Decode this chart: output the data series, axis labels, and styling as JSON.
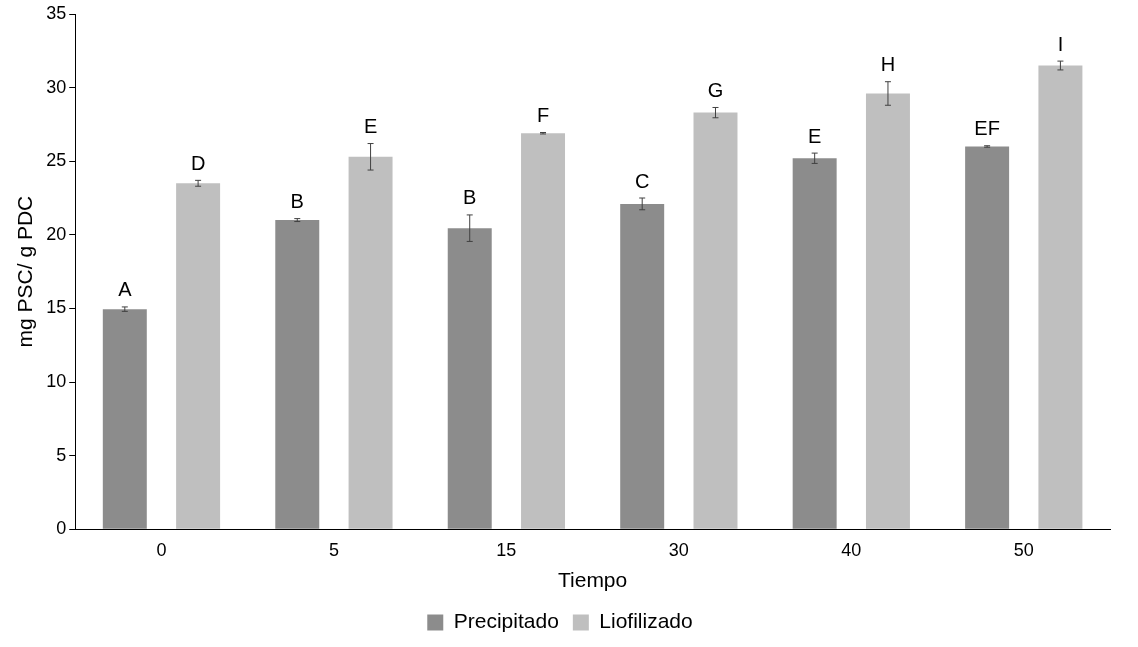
{
  "chart_data": {
    "type": "bar",
    "xlabel": "Tiempo",
    "ylabel": "mg PSC/ g PDC",
    "categories": [
      "0",
      "5",
      "15",
      "30",
      "40",
      "50"
    ],
    "series": [
      {
        "name": "Precipitado",
        "color": "#8c8c8c",
        "values": [
          14.95,
          21.0,
          20.45,
          22.1,
          25.2,
          26.0
        ],
        "errors": [
          0.15,
          0.1,
          0.9,
          0.4,
          0.35,
          0.05
        ],
        "value_labels": [
          "A",
          "B",
          "B",
          "C",
          "E",
          "EF"
        ]
      },
      {
        "name": "Liofilizado",
        "color": "#bfbfbf",
        "values": [
          23.5,
          25.3,
          26.9,
          28.3,
          29.6,
          31.5
        ],
        "errors": [
          0.2,
          0.9,
          0.05,
          0.35,
          0.8,
          0.3
        ],
        "value_labels": [
          "D",
          "E",
          "F",
          "G",
          "H",
          "I"
        ]
      }
    ],
    "ylim": [
      0,
      35
    ],
    "yticks": [
      0,
      5,
      10,
      15,
      20,
      25,
      30,
      35
    ],
    "grid": false,
    "legend": "bottom"
  }
}
